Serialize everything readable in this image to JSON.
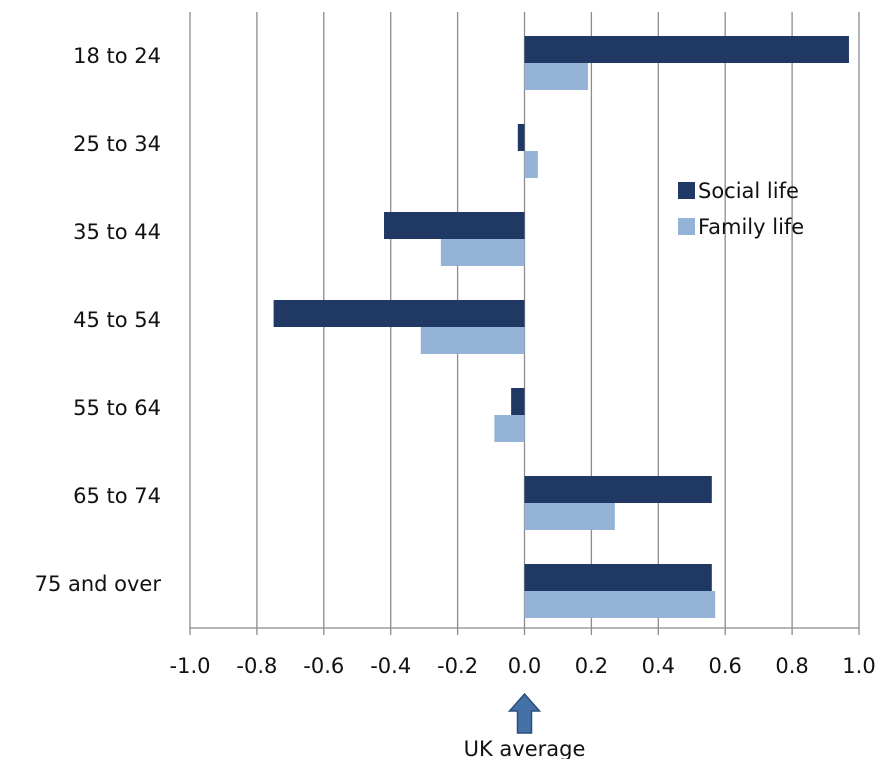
{
  "chart_data": {
    "type": "bar",
    "orientation": "horizontal",
    "categories": [
      "18 to 24",
      "25 to 34",
      "35 to 44",
      "45 to 54",
      "55 to 64",
      "65 to 74",
      "75 and over"
    ],
    "series": [
      {
        "name": "Social life",
        "color": "#1f3864",
        "values": [
          0.97,
          -0.02,
          -0.42,
          -0.75,
          -0.04,
          0.56,
          0.56
        ]
      },
      {
        "name": "Family life",
        "color": "#95b3d7",
        "values": [
          0.19,
          0.04,
          -0.25,
          -0.31,
          -0.09,
          0.27,
          0.57
        ]
      }
    ],
    "x_ticks": [
      "-1.0",
      "-0.8",
      "-0.6",
      "-0.4",
      "-0.2",
      "0.0",
      "0.2",
      "0.4",
      "0.6",
      "0.8",
      "1.0"
    ],
    "xlim": [
      -1.0,
      1.0
    ],
    "grid": "vertical",
    "legend_position": "right",
    "annotation": {
      "text": "UK average",
      "at_x": 0.0,
      "arrow_color": "#4472a8",
      "arrow_outline": "#2a4e7a"
    }
  }
}
